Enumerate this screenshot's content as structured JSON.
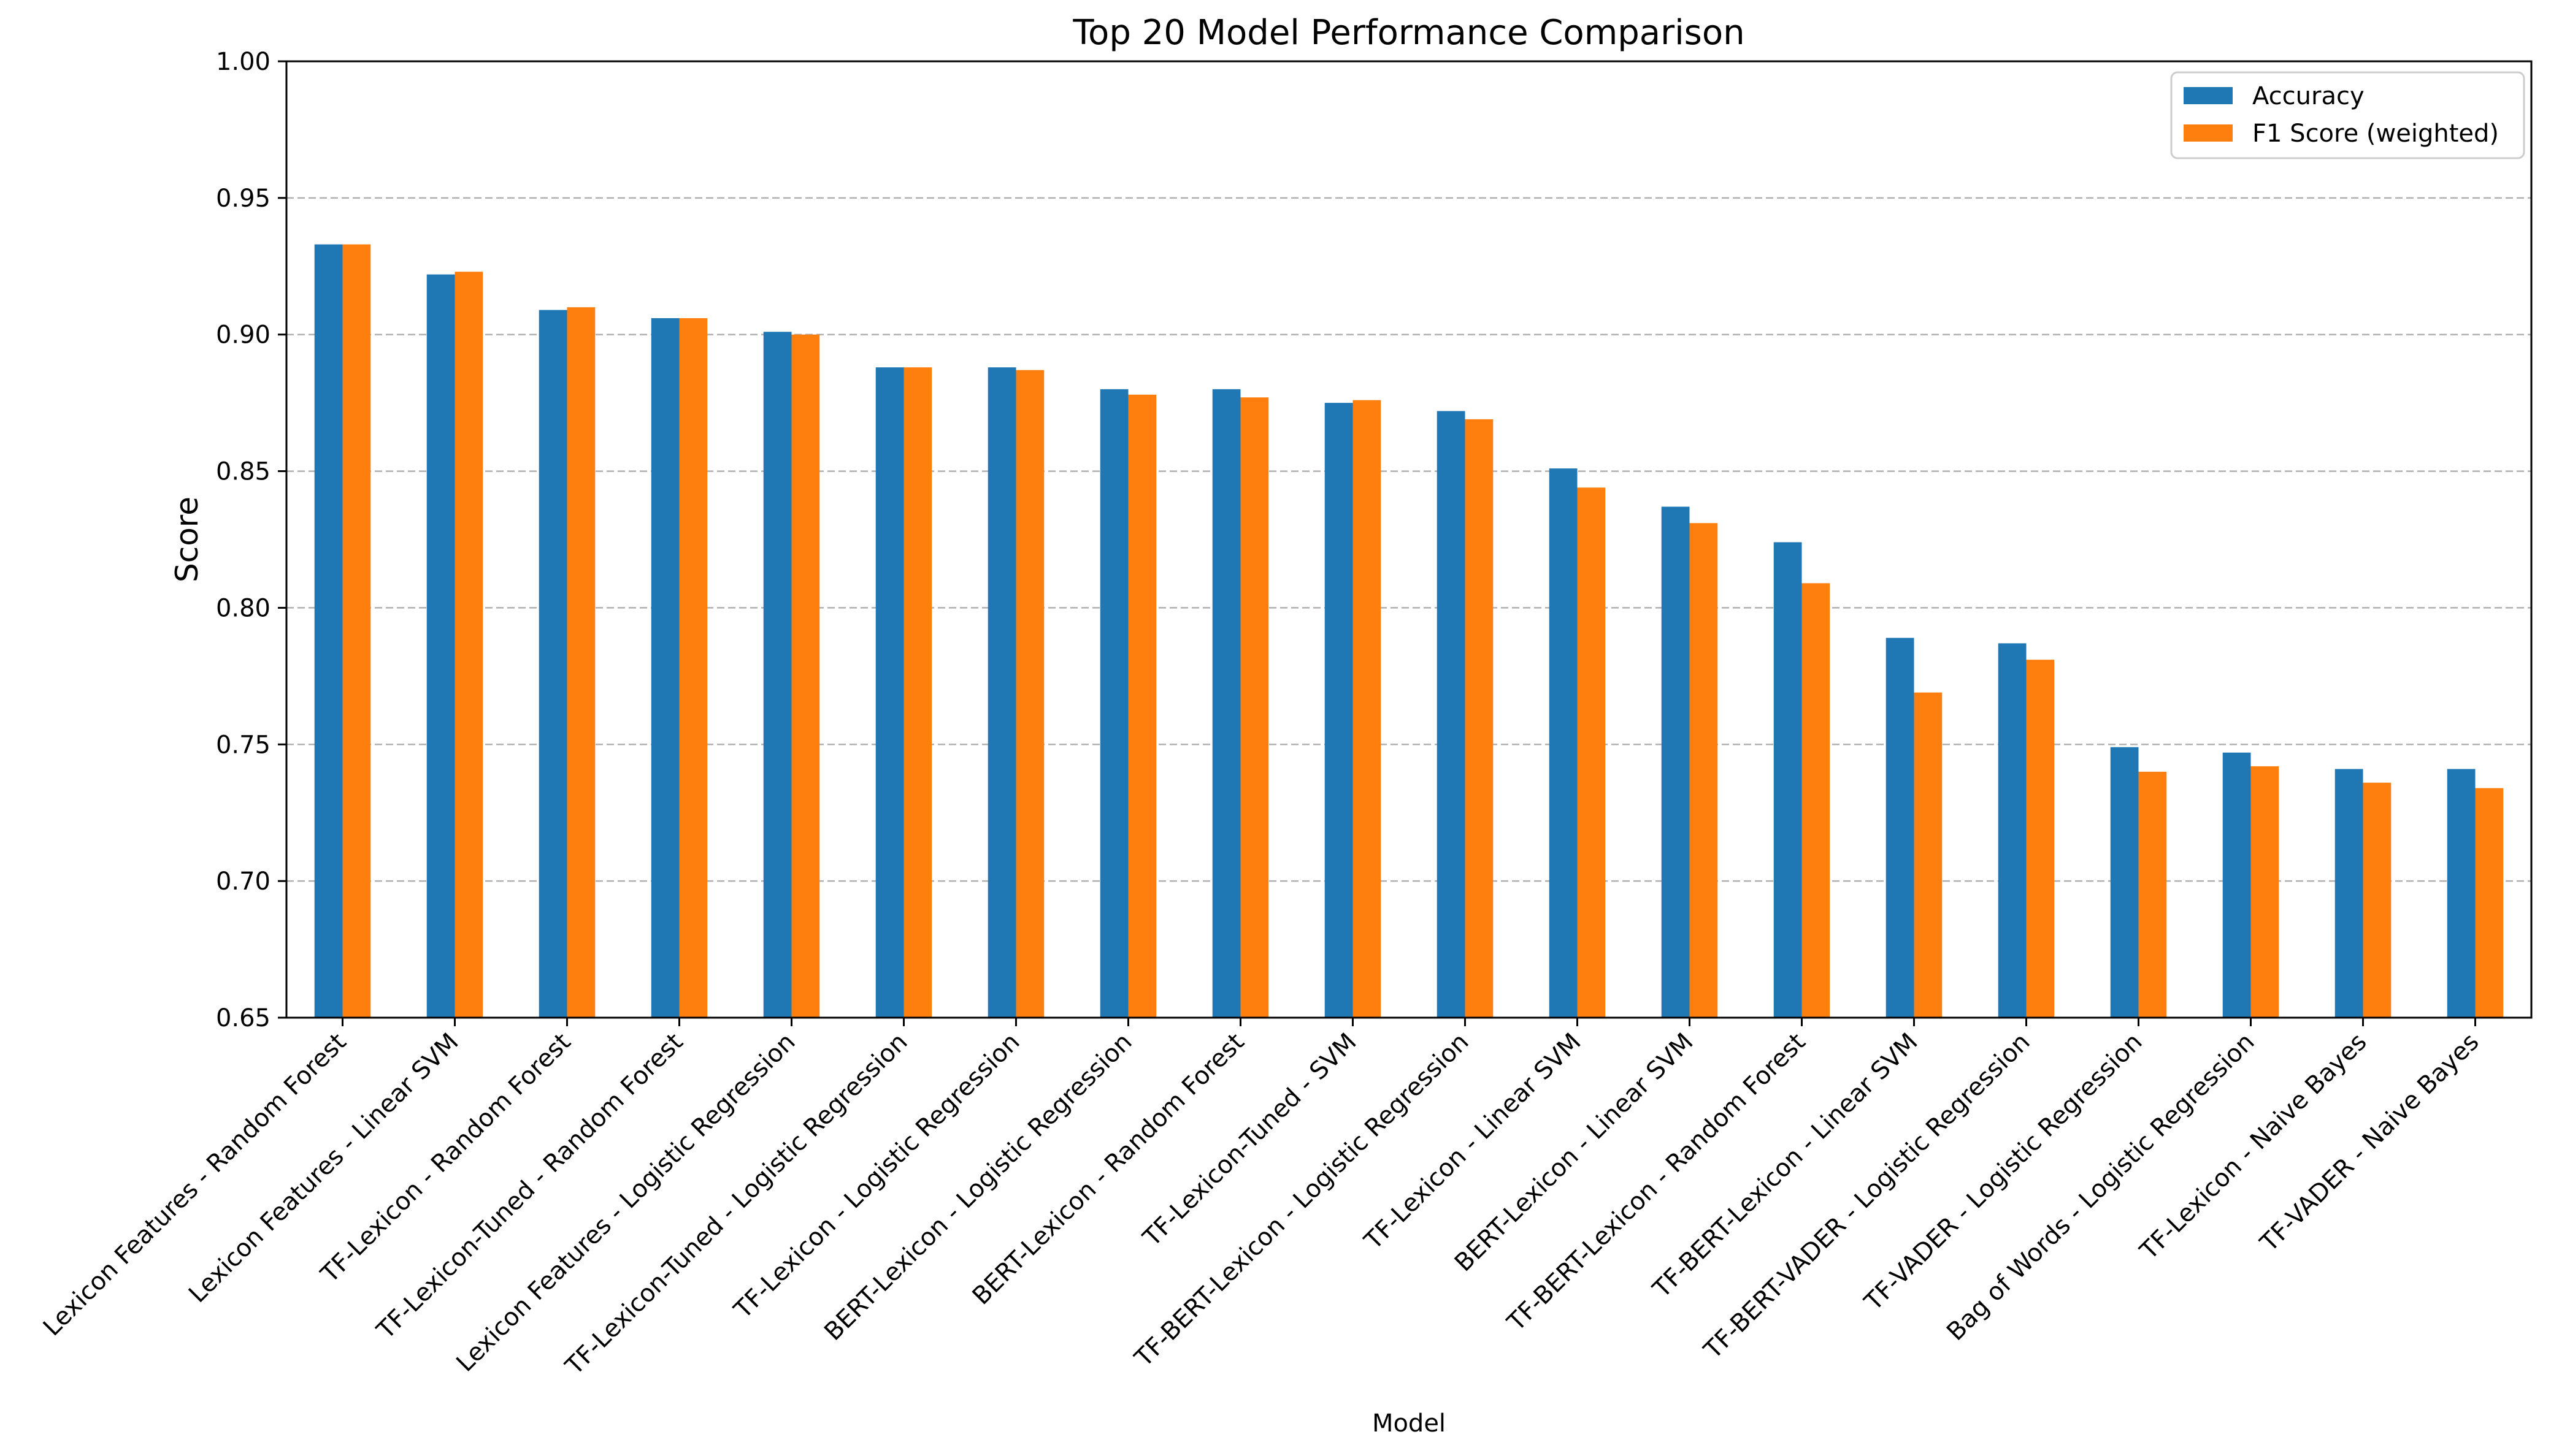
{
  "chart_data": {
    "type": "bar",
    "title": "Top 20 Model Performance Comparison",
    "xlabel": "Model",
    "ylabel": "Score",
    "ylim": [
      0.65,
      1.0
    ],
    "yticks": [
      "0.65",
      "0.70",
      "0.75",
      "0.80",
      "0.85",
      "0.90",
      "0.95",
      "1.00"
    ],
    "grid": "horizontal dashed",
    "legend_position": "top-right",
    "categories": [
      "Lexicon Features - Random Forest",
      "Lexicon Features - Linear SVM",
      "TF-Lexicon - Random Forest",
      "TF-Lexicon-Tuned - Random Forest",
      "Lexicon Features - Logistic Regression",
      "TF-Lexicon-Tuned - Logistic Regression",
      "TF-Lexicon - Logistic Regression",
      "BERT-Lexicon - Logistic Regression",
      "BERT-Lexicon - Random Forest",
      "TF-Lexicon-Tuned - SVM",
      "TF-BERT-Lexicon - Logistic Regression",
      "TF-Lexicon - Linear SVM",
      "BERT-Lexicon - Linear SVM",
      "TF-BERT-Lexicon - Random Forest",
      "TF-BERT-Lexicon - Linear SVM",
      "TF-BERT-VADER - Logistic Regression",
      "TF-VADER - Logistic Regression",
      "Bag of Words - Logistic Regression",
      "TF-Lexicon - Naive Bayes",
      "TF-VADER - Naive Bayes"
    ],
    "series": [
      {
        "name": "Accuracy",
        "color": "#1f77b4",
        "values": [
          0.933,
          0.922,
          0.909,
          0.906,
          0.901,
          0.888,
          0.888,
          0.88,
          0.88,
          0.875,
          0.872,
          0.851,
          0.837,
          0.824,
          0.789,
          0.787,
          0.749,
          0.747,
          0.741,
          0.741
        ]
      },
      {
        "name": "F1 Score (weighted)",
        "color": "#ff7f0e",
        "values": [
          0.933,
          0.923,
          0.91,
          0.906,
          0.9,
          0.888,
          0.887,
          0.878,
          0.877,
          0.876,
          0.869,
          0.844,
          0.831,
          0.809,
          0.769,
          0.781,
          0.74,
          0.742,
          0.736,
          0.734
        ]
      }
    ]
  }
}
